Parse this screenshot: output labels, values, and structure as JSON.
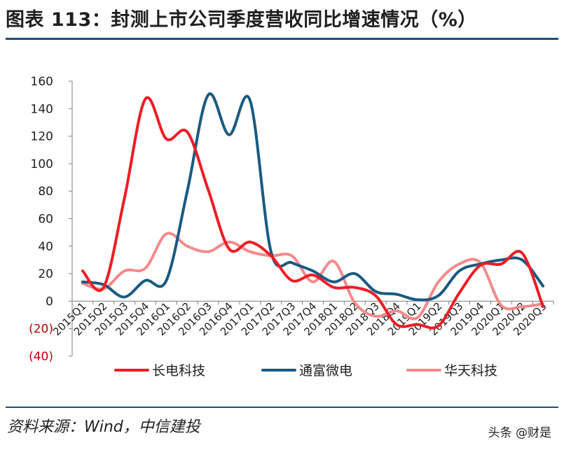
{
  "title": "图表 113：封测上市公司季度营收同比增速情况（%）",
  "source": "资料来源：Wind，中信建投",
  "watermark": "头条 @财是",
  "colors": {
    "axis": "#7f7f7f",
    "negative_tick": "#c00000",
    "rule": "#1f4e79"
  },
  "chart_data": {
    "type": "line",
    "smooth": true,
    "title": "",
    "xlabel": "",
    "ylabel": "",
    "ylim": [
      -40,
      160
    ],
    "yticks": [
      160,
      140,
      120,
      100,
      80,
      60,
      40,
      20,
      0,
      -20,
      -40
    ],
    "ytick_labels": [
      "160",
      "140",
      "120",
      "100",
      "80",
      "60",
      "40",
      "20",
      "0",
      "(20)",
      "(40)"
    ],
    "grid": false,
    "legend_position": "bottom",
    "categories": [
      "2015Q1",
      "2015Q2",
      "2015Q3",
      "2015Q4",
      "2016Q1",
      "2016Q2",
      "2016Q3",
      "2016Q4",
      "2017Q1",
      "2017Q2",
      "2017Q3",
      "2017Q4",
      "2018Q1",
      "2018Q2",
      "2018Q3",
      "2018Q4",
      "2019Q1",
      "2019Q2",
      "2019Q3",
      "2019Q4",
      "2020Q1",
      "2020Q2",
      "2020Q3"
    ],
    "series": [
      {
        "name": "长电科技",
        "color": "#ee1c25",
        "width": 4,
        "values": [
          22,
          10,
          75,
          147,
          118,
          123,
          81,
          38,
          43,
          33,
          15,
          19,
          10,
          10,
          4,
          -17,
          -17,
          -18,
          6,
          26,
          27,
          35,
          -4
        ]
      },
      {
        "name": "通富微电",
        "color": "#1a5a80",
        "width": 4,
        "values": [
          14,
          12,
          3,
          15,
          15,
          80,
          150,
          121,
          146,
          36,
          28,
          22,
          14,
          20,
          7,
          5,
          1,
          4,
          22,
          27,
          30,
          30,
          11
        ]
      },
      {
        "name": "华天科技",
        "color": "#f48a8c",
        "width": 4,
        "values": [
          13,
          9,
          22,
          24,
          49,
          40,
          36,
          43,
          36,
          33,
          33,
          14,
          29,
          -1,
          -11,
          -7,
          -12,
          14,
          27,
          28,
          -3,
          -4,
          -2
        ]
      }
    ]
  }
}
